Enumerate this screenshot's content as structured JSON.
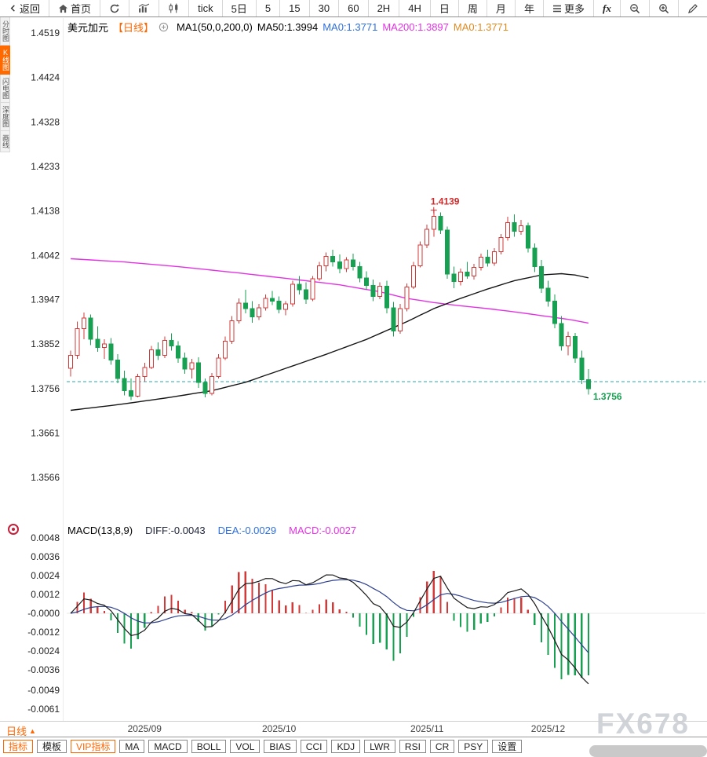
{
  "toolbar": {
    "back": "返回",
    "home": "首页",
    "periods": [
      "tick",
      "5日",
      "5",
      "15",
      "30",
      "60",
      "2H",
      "4H",
      "日",
      "周",
      "月",
      "年"
    ],
    "more": "更多",
    "fx": "fx"
  },
  "side_tabs": [
    "分时图",
    "K线图",
    "闪电图",
    "深度图",
    "画线"
  ],
  "chart_header": {
    "symbol": "美元加元",
    "period_tag": "【日线】",
    "ma_title": "MA1(50,0,200,0)",
    "ma50": "MA50:1.3994",
    "ma0_blue": "MA0:1.3771",
    "ma200": "MA200:1.3897",
    "ma0_orange": "MA0:1.3771"
  },
  "macd_header": {
    "title": "MACD(13,8,9)",
    "diff": "DIFF:-0.0043",
    "dea": "DEA:-0.0029",
    "macd": "MACD:-0.0027"
  },
  "bottom_bar": {
    "period_label": "日线",
    "period_arrow": "▲",
    "tabs": [
      "指标",
      "模板",
      "VIP指标",
      "MA",
      "MACD",
      "BOLL",
      "VOL",
      "BIAS",
      "CCI",
      "KDJ",
      "LWR",
      "RSI",
      "CR",
      "PSY",
      "设置"
    ]
  },
  "watermark": "FX678",
  "icons": {
    "back": "chevron-left",
    "home": "house",
    "refresh": "circular-arrow",
    "chart_type_1": "bar-line-chart",
    "chart_type_2": "candlestick-chart",
    "more": "hamburger-menu",
    "zoom_out": "magnifier-minus",
    "zoom_in": "magnifier-plus",
    "draw": "pencil",
    "header_plus": "circle-plus",
    "macd_panel": "red-circle-dot"
  },
  "colors": {
    "accent": "#ff6600",
    "up": "#d23a3a",
    "down": "#18a052",
    "ma50": "#141414",
    "ma200": "#e233e2",
    "dashed_line": "#2aa7ae",
    "last_price": "#18a052",
    "high_label": "#d02a2a",
    "diff_line": "#1a1a1a",
    "dea_line": "#2c3f8f",
    "hist_up": "#d23a3a",
    "hist_down": "#18a052",
    "axis_text": "#222222",
    "tick_text": "#444444"
  },
  "chart_data": {
    "type": "candlestick",
    "title": "美元加元 USD/CAD 日线",
    "indicator": "MACD",
    "price_axis": {
      "max": 1.4519,
      "min": 1.3566,
      "labels": [
        "1.4519",
        "1.4424",
        "1.4328",
        "1.4233",
        "1.4138",
        "1.4042",
        "1.3947",
        "1.3852",
        "1.3756",
        "1.3661",
        "1.3566"
      ]
    },
    "x_ticks": [
      {
        "index": 11,
        "label": "2025/09"
      },
      {
        "index": 31,
        "label": "2025/10"
      },
      {
        "index": 53,
        "label": "2025/11"
      },
      {
        "index": 71,
        "label": "2025/12"
      }
    ],
    "dashed_price_line": 1.3771,
    "last_price": {
      "label": "1.3756",
      "value": 1.3756
    },
    "high_marker": {
      "index": 54,
      "price": 1.4139,
      "label": "1.4139"
    },
    "candles": [
      [
        1.38,
        1.3838,
        1.3782,
        1.3828
      ],
      [
        1.3828,
        1.39,
        1.382,
        1.3885
      ],
      [
        1.3885,
        1.392,
        1.3862,
        1.3908
      ],
      [
        1.3908,
        1.3915,
        1.385,
        1.3862
      ],
      [
        1.3862,
        1.389,
        1.3835,
        1.3845
      ],
      [
        1.3845,
        1.3862,
        1.382,
        1.3852
      ],
      [
        1.3852,
        1.3865,
        1.3808,
        1.3818
      ],
      [
        1.3818,
        1.383,
        1.3768,
        1.3778
      ],
      [
        1.3778,
        1.3795,
        1.3742,
        1.3752
      ],
      [
        1.3752,
        1.3778,
        1.3732,
        1.374
      ],
      [
        1.374,
        1.3788,
        1.3738,
        1.3782
      ],
      [
        1.3782,
        1.3812,
        1.3772,
        1.3802
      ],
      [
        1.3802,
        1.3848,
        1.3798,
        1.384
      ],
      [
        1.384,
        1.3856,
        1.3818,
        1.3828
      ],
      [
        1.3828,
        1.3868,
        1.3822,
        1.386
      ],
      [
        1.386,
        1.3875,
        1.3838,
        1.3848
      ],
      [
        1.3848,
        1.3858,
        1.3812,
        1.3822
      ],
      [
        1.3822,
        1.3834,
        1.3788,
        1.3798
      ],
      [
        1.3798,
        1.382,
        1.3778,
        1.3812
      ],
      [
        1.3812,
        1.3824,
        1.3758,
        1.377
      ],
      [
        1.377,
        1.3778,
        1.3738,
        1.3746
      ],
      [
        1.3746,
        1.379,
        1.3742,
        1.3782
      ],
      [
        1.3782,
        1.383,
        1.3778,
        1.3822
      ],
      [
        1.3822,
        1.3868,
        1.3818,
        1.3858
      ],
      [
        1.3858,
        1.3912,
        1.3852,
        1.3902
      ],
      [
        1.3902,
        1.395,
        1.3896,
        1.394
      ],
      [
        1.394,
        1.3968,
        1.3918,
        1.3928
      ],
      [
        1.3928,
        1.3944,
        1.3898,
        1.391
      ],
      [
        1.391,
        1.3938,
        1.3904,
        1.393
      ],
      [
        1.393,
        1.3958,
        1.3924,
        1.395
      ],
      [
        1.395,
        1.3966,
        1.3936,
        1.3944
      ],
      [
        1.3944,
        1.3954,
        1.3918,
        1.3926
      ],
      [
        1.3926,
        1.3944,
        1.3914,
        1.3938
      ],
      [
        1.3938,
        1.3988,
        1.3932,
        1.398
      ],
      [
        1.398,
        1.3998,
        1.3958,
        1.3968
      ],
      [
        1.3968,
        1.3984,
        1.3938,
        1.3948
      ],
      [
        1.3948,
        1.3998,
        1.3944,
        1.3992
      ],
      [
        1.3992,
        1.4028,
        1.3988,
        1.402
      ],
      [
        1.402,
        1.4048,
        1.4008,
        1.404
      ],
      [
        1.404,
        1.4054,
        1.4018,
        1.4028
      ],
      [
        1.4028,
        1.4044,
        1.4004,
        1.4014
      ],
      [
        1.4014,
        1.4038,
        1.4006,
        1.4032
      ],
      [
        1.4032,
        1.4046,
        1.401,
        1.4018
      ],
      [
        1.4018,
        1.4028,
        1.3984,
        1.3994
      ],
      [
        1.3994,
        1.4008,
        1.3968,
        1.3978
      ],
      [
        1.3978,
        1.399,
        1.3944,
        1.3954
      ],
      [
        1.3954,
        1.3984,
        1.3948,
        1.3976
      ],
      [
        1.3976,
        1.3988,
        1.3918,
        1.393
      ],
      [
        1.393,
        1.3942,
        1.3868,
        1.388
      ],
      [
        1.388,
        1.3938,
        1.3874,
        1.3928
      ],
      [
        1.3928,
        1.3982,
        1.3922,
        1.3974
      ],
      [
        1.3974,
        1.4028,
        1.397,
        1.402
      ],
      [
        1.402,
        1.4072,
        1.4016,
        1.4064
      ],
      [
        1.4064,
        1.4108,
        1.4058,
        1.4098
      ],
      [
        1.4098,
        1.4139,
        1.4082,
        1.4126
      ],
      [
        1.4126,
        1.4134,
        1.4088,
        1.4096
      ],
      [
        1.4096,
        1.4104,
        1.3992,
        1.4002
      ],
      [
        1.4002,
        1.4018,
        1.3972,
        1.3986
      ],
      [
        1.3986,
        1.4014,
        1.3978,
        1.4006
      ],
      [
        1.4006,
        1.4028,
        1.3992,
        1.3998
      ],
      [
        1.3998,
        1.4024,
        1.399,
        1.4016
      ],
      [
        1.4016,
        1.4046,
        1.401,
        1.4038
      ],
      [
        1.4038,
        1.4054,
        1.4018,
        1.4026
      ],
      [
        1.4026,
        1.4058,
        1.402,
        1.405
      ],
      [
        1.405,
        1.4088,
        1.4044,
        1.408
      ],
      [
        1.408,
        1.4125,
        1.4074,
        1.4112
      ],
      [
        1.4112,
        1.413,
        1.4082,
        1.4094
      ],
      [
        1.4094,
        1.4118,
        1.4086,
        1.4106
      ],
      [
        1.4106,
        1.4112,
        1.4048,
        1.4058
      ],
      [
        1.4058,
        1.4068,
        1.4006,
        1.4018
      ],
      [
        1.4018,
        1.4032,
        1.3962,
        1.3972
      ],
      [
        1.3972,
        1.3988,
        1.3932,
        1.3944
      ],
      [
        1.3944,
        1.3958,
        1.3886,
        1.3896
      ],
      [
        1.3896,
        1.3912,
        1.3838,
        1.3848
      ],
      [
        1.3848,
        1.3878,
        1.3828,
        1.3868
      ],
      [
        1.3868,
        1.3876,
        1.3812,
        1.3822
      ],
      [
        1.3822,
        1.3838,
        1.3766,
        1.3776
      ],
      [
        1.3776,
        1.3798,
        1.3744,
        1.3756
      ]
    ],
    "ma200_points": [
      [
        0,
        1.4035
      ],
      [
        8,
        1.4028
      ],
      [
        16,
        1.4018
      ],
      [
        24,
        1.4006
      ],
      [
        32,
        1.3993
      ],
      [
        40,
        1.3979
      ],
      [
        46,
        1.3964
      ],
      [
        50,
        1.395
      ],
      [
        54,
        1.3941
      ],
      [
        58,
        1.3934
      ],
      [
        62,
        1.3928
      ],
      [
        66,
        1.3921
      ],
      [
        70,
        1.3913
      ],
      [
        74,
        1.3905
      ],
      [
        77,
        1.3897
      ]
    ],
    "ma50_points": [
      [
        0,
        1.371
      ],
      [
        7,
        1.3722
      ],
      [
        14,
        1.3736
      ],
      [
        21,
        1.3752
      ],
      [
        26,
        1.377
      ],
      [
        32,
        1.38
      ],
      [
        38,
        1.383
      ],
      [
        44,
        1.3862
      ],
      [
        50,
        1.39
      ],
      [
        54,
        1.3928
      ],
      [
        58,
        1.395
      ],
      [
        62,
        1.397
      ],
      [
        66,
        1.3988
      ],
      [
        70,
        1.4
      ],
      [
        73,
        1.4003
      ],
      [
        75,
        1.4
      ],
      [
        77,
        1.3994
      ]
    ],
    "macd": {
      "fast": 8,
      "slow": 13,
      "signal": 9,
      "axis_labels": [
        "0.0048",
        "0.0036",
        "0.0024",
        "0.0012",
        "-0.0000",
        "-0.0012",
        "-0.0024",
        "-0.0036",
        "-0.0049",
        "-0.0061"
      ],
      "diff_text": "-0.0043",
      "dea_text": "-0.0029",
      "macd_text": "-0.0027"
    }
  }
}
